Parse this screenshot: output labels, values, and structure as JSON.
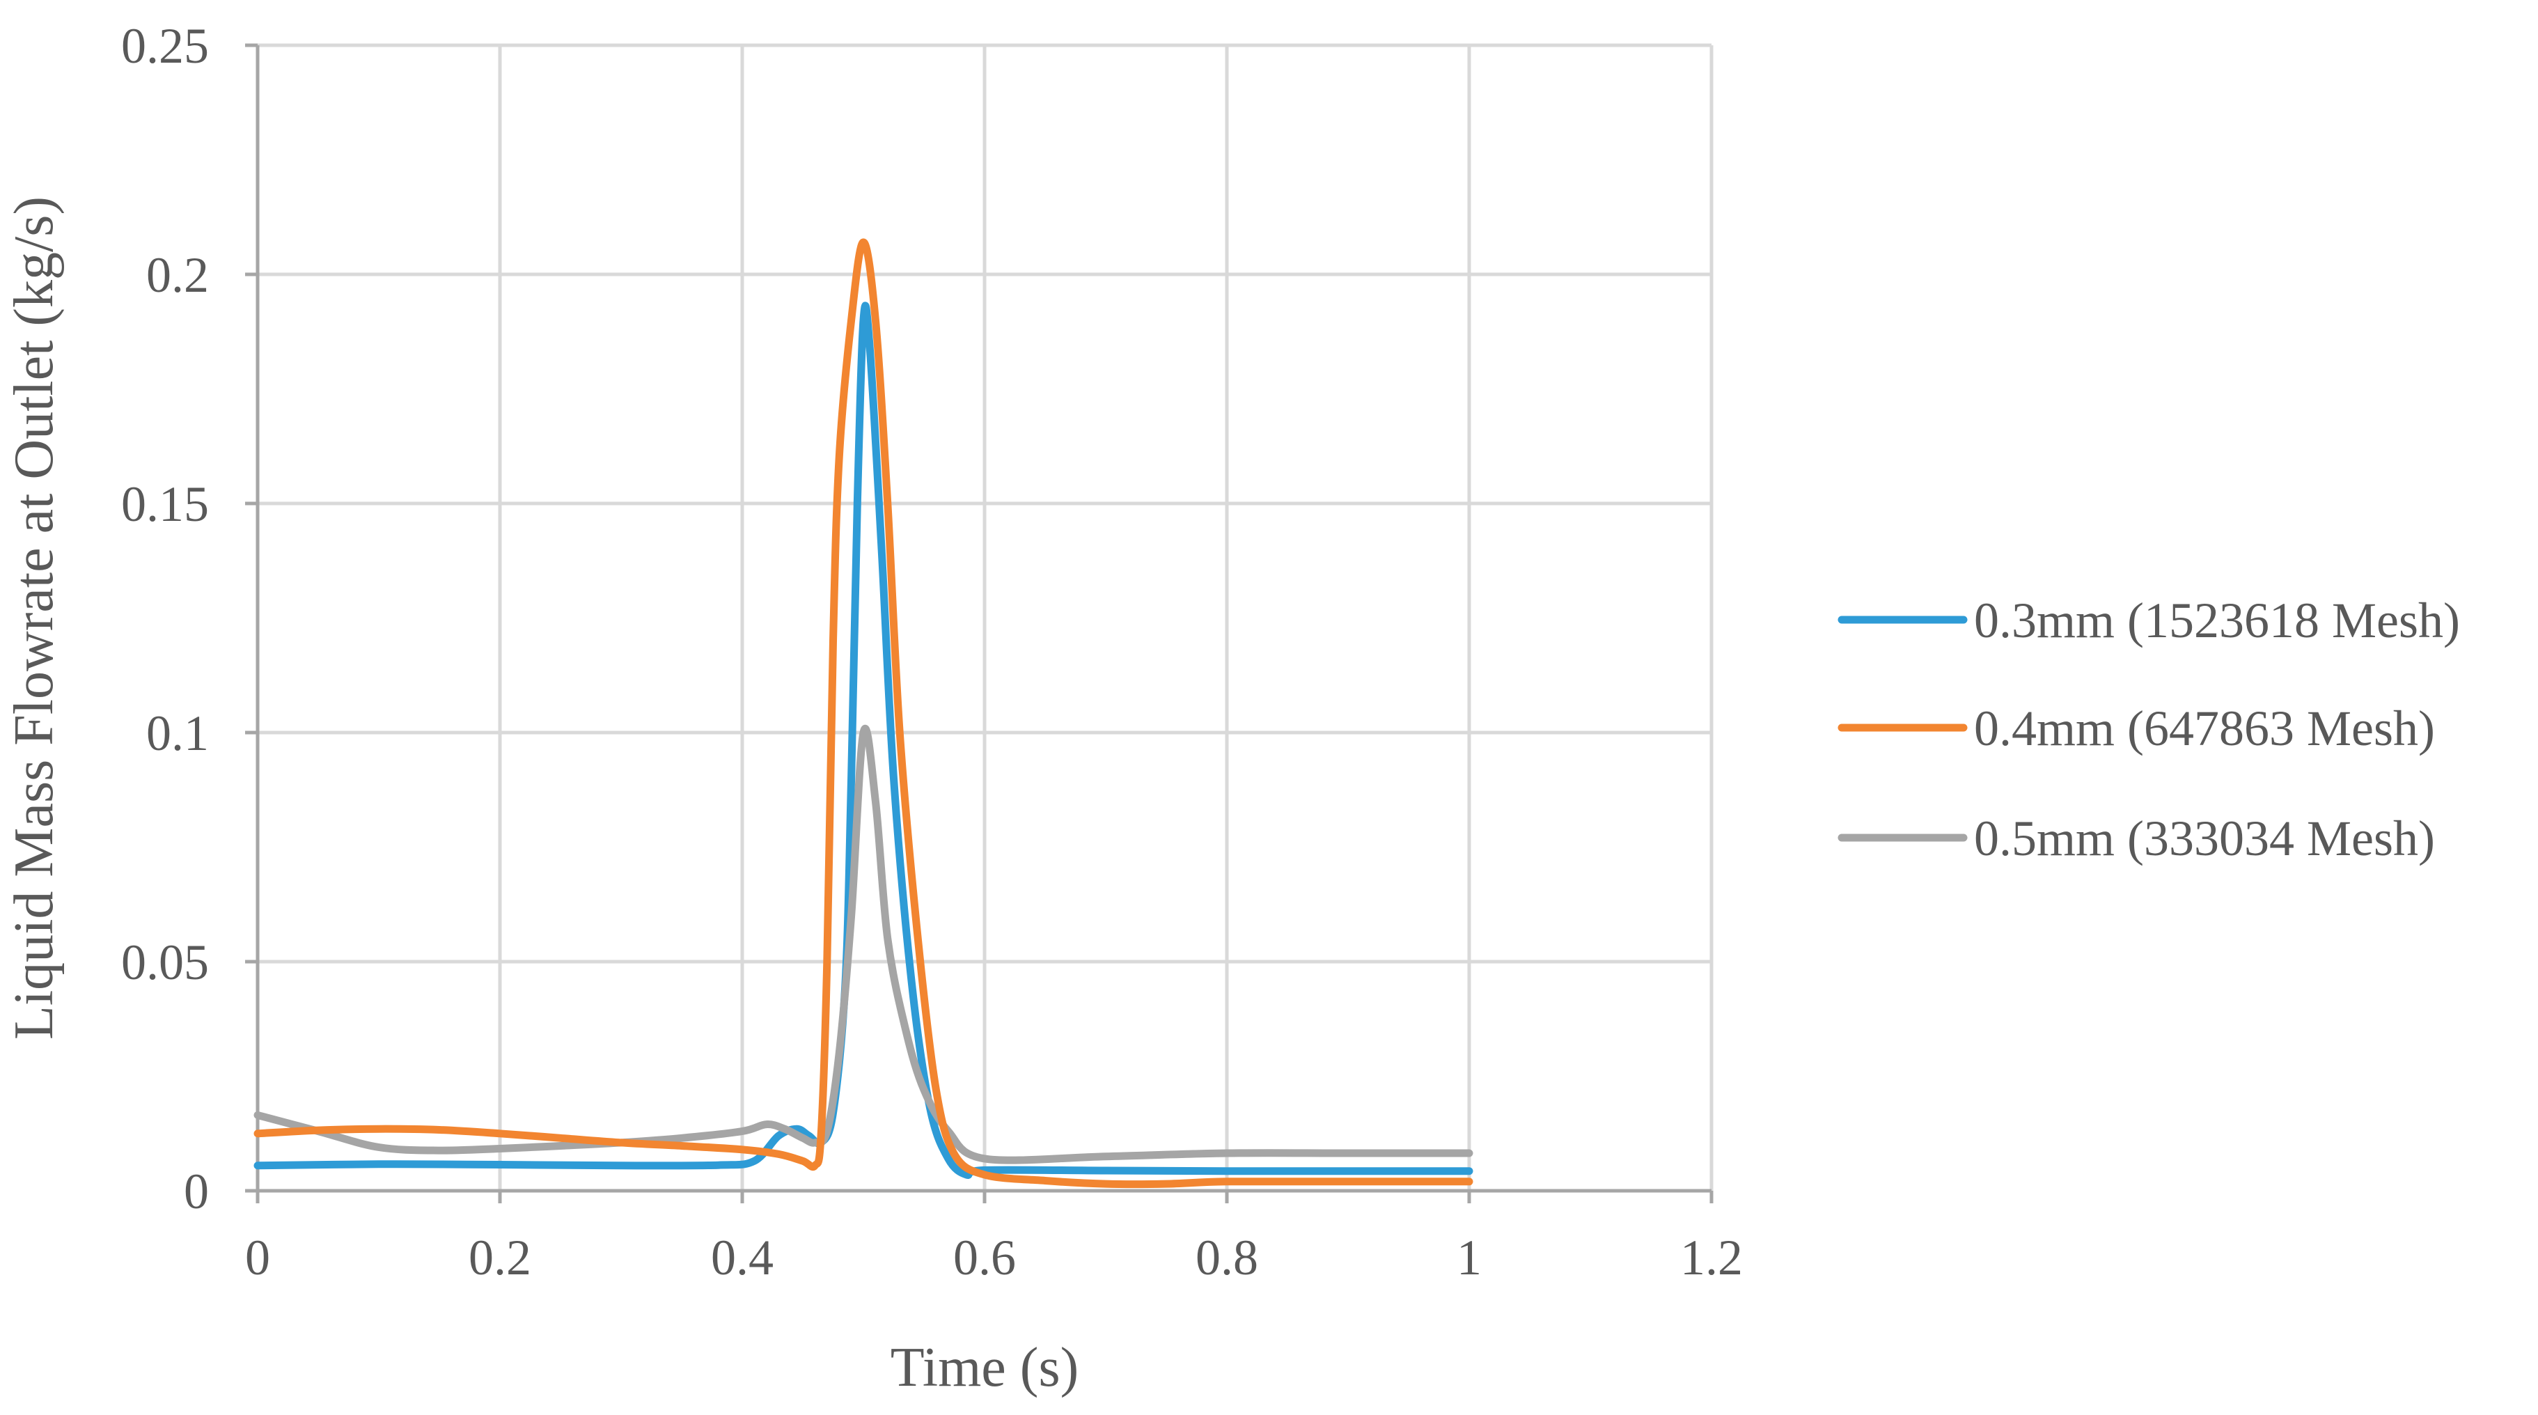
{
  "chart_data": {
    "type": "line",
    "title": "",
    "xlabel": "Time (s)",
    "ylabel": "Liquid Mass Flowrate at Outlet (kg/s)",
    "xlim": [
      0,
      1.2
    ],
    "ylim": [
      0,
      0.25
    ],
    "x_ticks": [
      0,
      0.2,
      0.4,
      0.6,
      0.8,
      1,
      1.2
    ],
    "x_tick_labels": [
      "0",
      "0.2",
      "0.4",
      "0.6",
      "0.8",
      "1",
      "1.2"
    ],
    "y_ticks": [
      0,
      0.05,
      0.1,
      0.15,
      0.2,
      0.25
    ],
    "y_tick_labels": [
      "0",
      "0.05",
      "0.1",
      "0.15",
      "0.2",
      "0.25"
    ],
    "grid": true,
    "legend_position": "right",
    "series": [
      {
        "name": "0.3mm (1523618 Mesh)",
        "color": "#2E9BD6",
        "points": [
          [
            0,
            0.0055
          ],
          [
            0.1,
            0.0058
          ],
          [
            0.2,
            0.0057
          ],
          [
            0.3,
            0.0055
          ],
          [
            0.38,
            0.0056
          ],
          [
            0.41,
            0.0065
          ],
          [
            0.43,
            0.012
          ],
          [
            0.445,
            0.0135
          ],
          [
            0.455,
            0.012
          ],
          [
            0.465,
            0.0105
          ],
          [
            0.475,
            0.017
          ],
          [
            0.485,
            0.045
          ],
          [
            0.49,
            0.09
          ],
          [
            0.495,
            0.15
          ],
          [
            0.5,
            0.19
          ],
          [
            0.505,
            0.185
          ],
          [
            0.515,
            0.14
          ],
          [
            0.525,
            0.09
          ],
          [
            0.54,
            0.045
          ],
          [
            0.555,
            0.018
          ],
          [
            0.57,
            0.007
          ],
          [
            0.585,
            0.0035
          ],
          [
            0.6,
            0.0045
          ],
          [
            0.7,
            0.0044
          ],
          [
            0.8,
            0.0043
          ],
          [
            0.9,
            0.0043
          ],
          [
            1.0,
            0.0043
          ]
        ]
      },
      {
        "name": "0.4mm (647863 Mesh)",
        "color": "#F28530",
        "points": [
          [
            0,
            0.0125
          ],
          [
            0.05,
            0.0132
          ],
          [
            0.1,
            0.0135
          ],
          [
            0.15,
            0.0133
          ],
          [
            0.2,
            0.0125
          ],
          [
            0.25,
            0.0115
          ],
          [
            0.3,
            0.0105
          ],
          [
            0.35,
            0.0098
          ],
          [
            0.4,
            0.009
          ],
          [
            0.43,
            0.008
          ],
          [
            0.45,
            0.0065
          ],
          [
            0.46,
            0.0055
          ],
          [
            0.465,
            0.012
          ],
          [
            0.47,
            0.05
          ],
          [
            0.475,
            0.12
          ],
          [
            0.48,
            0.16
          ],
          [
            0.49,
            0.19
          ],
          [
            0.5,
            0.207
          ],
          [
            0.51,
            0.19
          ],
          [
            0.52,
            0.15
          ],
          [
            0.53,
            0.1
          ],
          [
            0.545,
            0.055
          ],
          [
            0.56,
            0.022
          ],
          [
            0.575,
            0.008
          ],
          [
            0.6,
            0.0035
          ],
          [
            0.65,
            0.0022
          ],
          [
            0.7,
            0.0015
          ],
          [
            0.75,
            0.0015
          ],
          [
            0.8,
            0.002
          ],
          [
            0.9,
            0.002
          ],
          [
            1.0,
            0.002
          ]
        ]
      },
      {
        "name": "0.5mm (333034 Mesh)",
        "color": "#A5A5A5",
        "points": [
          [
            0,
            0.0165
          ],
          [
            0.05,
            0.013
          ],
          [
            0.1,
            0.0095
          ],
          [
            0.15,
            0.0088
          ],
          [
            0.2,
            0.0092
          ],
          [
            0.25,
            0.0098
          ],
          [
            0.3,
            0.0105
          ],
          [
            0.35,
            0.0115
          ],
          [
            0.4,
            0.013
          ],
          [
            0.42,
            0.0145
          ],
          [
            0.435,
            0.0135
          ],
          [
            0.45,
            0.0115
          ],
          [
            0.46,
            0.0105
          ],
          [
            0.47,
            0.013
          ],
          [
            0.48,
            0.03
          ],
          [
            0.49,
            0.06
          ],
          [
            0.5,
            0.1
          ],
          [
            0.51,
            0.085
          ],
          [
            0.52,
            0.055
          ],
          [
            0.535,
            0.035
          ],
          [
            0.55,
            0.022
          ],
          [
            0.57,
            0.013
          ],
          [
            0.6,
            0.007
          ],
          [
            0.7,
            0.0075
          ],
          [
            0.8,
            0.0082
          ],
          [
            0.9,
            0.0082
          ],
          [
            1.0,
            0.0082
          ]
        ]
      }
    ]
  }
}
